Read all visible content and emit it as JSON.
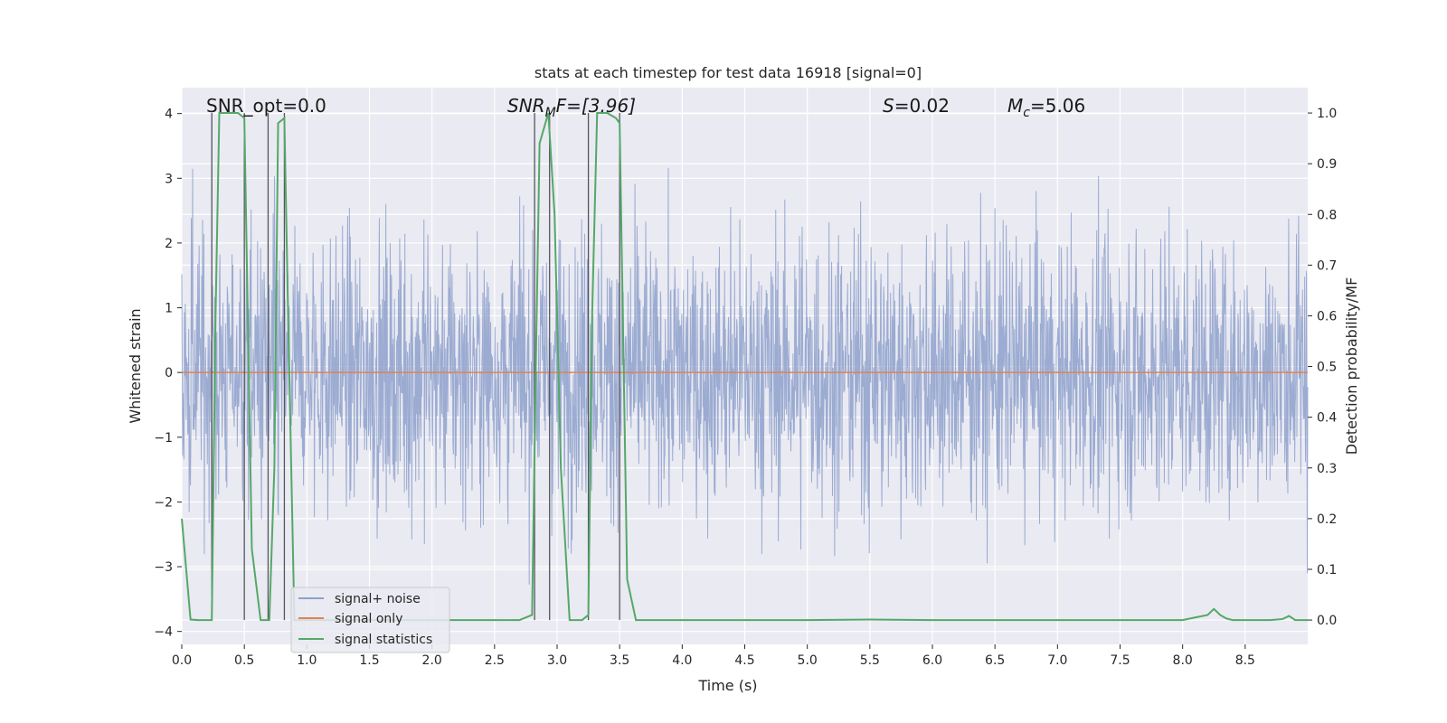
{
  "chart_data": {
    "type": "line",
    "title": "stats at each timestep for test data 16918 [signal=0]",
    "xlabel": "Time (s)",
    "ylabel_left": "Whitened strain",
    "ylabel_right": "Detection probability/MF",
    "xlim": [
      0.0,
      9.0
    ],
    "ylim_left": [
      -4.2,
      4.4
    ],
    "ylim_right": [
      -0.048,
      1.05
    ],
    "x_ticks": [
      "0.0",
      "0.5",
      "1.0",
      "1.5",
      "2.0",
      "2.5",
      "3.0",
      "3.5",
      "4.0",
      "4.5",
      "5.0",
      "5.5",
      "6.0",
      "6.5",
      "7.0",
      "7.5",
      "8.0",
      "8.5"
    ],
    "y_left_ticks": [
      "4",
      "3",
      "2",
      "1",
      "0",
      "−1",
      "−2",
      "−3",
      "−4"
    ],
    "y_right_ticks": [
      "1.0",
      "0.9",
      "0.8",
      "0.7",
      "0.6",
      "0.5",
      "0.4",
      "0.3",
      "0.2",
      "0.1",
      "0.0"
    ],
    "grid": true,
    "legend_position": "lower-left",
    "annotations": {
      "snr_opt": "SNR_opt=0.0",
      "snr_mf_sym": "SNR",
      "snr_mf_sub": "M",
      "snr_mf_rest": "F=[3.96]",
      "s_sym": "S",
      "s_val": "=0.02",
      "mc_sym": "M",
      "mc_sub": "c",
      "mc_val": "=5.06"
    },
    "series": [
      {
        "name": "signal+ noise",
        "color": "#8da0cb",
        "description_note": "noise-like strain, approx range",
        "amplitude_range": [
          -3.9,
          4.0
        ]
      },
      {
        "name": "signal only",
        "color": "#dd8452",
        "values_constant": 0.0
      },
      {
        "name": "signal statistics",
        "color": "#55a868",
        "x": [
          0.0,
          0.07,
          0.13,
          0.2,
          0.24,
          0.27,
          0.3,
          0.35,
          0.4,
          0.45,
          0.5,
          0.56,
          0.63,
          0.7,
          0.74,
          0.77,
          0.82,
          0.85,
          0.9,
          1.0,
          2.5,
          2.7,
          2.8,
          2.83,
          2.86,
          2.93,
          2.98,
          3.03,
          3.1,
          3.2,
          3.25,
          3.28,
          3.32,
          3.4,
          3.47,
          3.5,
          3.56,
          3.63,
          3.7,
          4.0,
          5.0,
          5.5,
          6.0,
          7.0,
          8.0,
          8.1,
          8.2,
          8.25,
          8.3,
          8.35,
          8.4,
          8.5,
          8.6,
          8.7,
          8.8,
          8.85,
          8.9,
          9.0
        ],
        "y": [
          0.2,
          0.001,
          0.0,
          0.0,
          0.0,
          0.6,
          1.0,
          1.0,
          1.0,
          1.0,
          0.99,
          0.14,
          0.0,
          0.0,
          0.3,
          0.98,
          0.99,
          0.6,
          0.0,
          0.0,
          0.0,
          0.0,
          0.01,
          0.5,
          0.94,
          1.0,
          0.8,
          0.3,
          0.0,
          0.0,
          0.01,
          0.6,
          1.0,
          1.0,
          0.99,
          0.98,
          0.08,
          0.0,
          0.0,
          0.0,
          0.0,
          0.001,
          0.0,
          0.0,
          0.0,
          0.005,
          0.01,
          0.022,
          0.01,
          0.003,
          0.0,
          0.0,
          0.0,
          0.0,
          0.002,
          0.008,
          0.0,
          0.0
        ]
      }
    ],
    "vertical_markers_x": [
      0.24,
      0.5,
      0.69,
      0.82,
      2.82,
      2.94,
      3.25,
      3.5
    ],
    "legend": [
      {
        "label": "signal+ noise",
        "color": "#8da0cb"
      },
      {
        "label": "signal only",
        "color": "#dd8452"
      },
      {
        "label": "signal statistics",
        "color": "#55a868"
      }
    ]
  }
}
